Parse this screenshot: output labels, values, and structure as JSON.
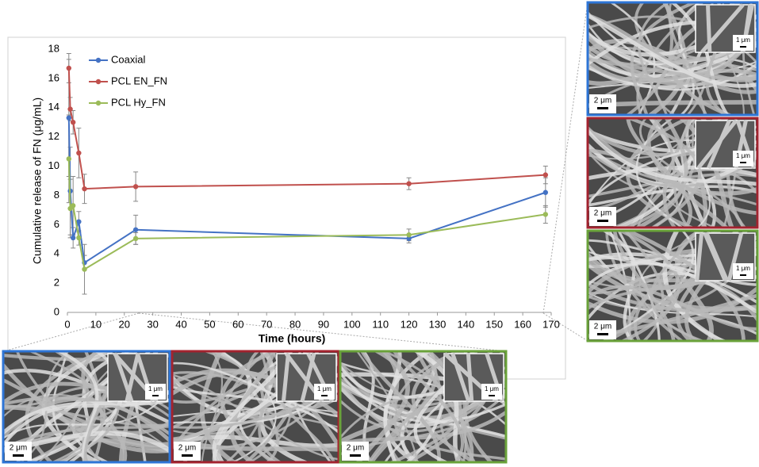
{
  "chart_data": {
    "type": "line",
    "x": [
      0.5,
      1,
      2,
      4,
      6,
      24,
      120,
      168
    ],
    "series": [
      {
        "name": "Coaxial",
        "color": "#4472c4",
        "values": [
          13.3,
          8.3,
          5.1,
          6.2,
          3.4,
          5.65,
          5.05,
          8.2
        ],
        "errors": [
          4,
          3,
          0.7,
          0.7,
          0.5,
          1.0,
          0.3,
          1.0
        ]
      },
      {
        "name": "PCL EN_FN",
        "color": "#c0504d",
        "values": [
          16.7,
          13.9,
          13.0,
          10.9,
          8.45,
          8.6,
          8.8,
          9.4
        ],
        "errors": [
          1,
          0.8,
          0.8,
          1.7,
          1,
          1,
          0.4,
          0.6
        ]
      },
      {
        "name": "PCL Hy_FN",
        "color": "#9bbb59",
        "values": [
          10.5,
          7.1,
          7.3,
          5.1,
          2.95,
          5.05,
          5.3,
          6.7
        ],
        "errors": [
          3,
          2,
          2,
          0.5,
          1.7,
          0.4,
          0.4,
          0.6
        ]
      }
    ],
    "xlabel": "Time (hours)",
    "ylabel": "Cumulative release  of FN (μg/mL)",
    "xlim": [
      0,
      170
    ],
    "xticks": [
      0,
      10,
      20,
      30,
      40,
      50,
      60,
      70,
      80,
      90,
      100,
      110,
      120,
      130,
      140,
      150,
      160,
      170
    ],
    "ylim": [
      0,
      18
    ],
    "yticks": [
      0,
      2,
      4,
      6,
      8,
      10,
      12,
      14,
      16,
      18
    ],
    "legend": "upper left",
    "grid": false
  },
  "images": [
    {
      "border": "#2e75d6",
      "scale_label": "2 μm",
      "inset_label": "1 μm"
    },
    {
      "border": "#a3232f",
      "scale_label": "2 μm",
      "inset_label": "1 μm"
    },
    {
      "border": "#6aa23a",
      "scale_label": "2 μm",
      "inset_label": "1 μm"
    },
    {
      "border": "#2e75d6",
      "scale_label": "2 μm",
      "inset_label": "1 μm"
    },
    {
      "border": "#a3232f",
      "scale_label": "2 μm",
      "inset_label": "1 μm"
    },
    {
      "border": "#6aa23a",
      "scale_label": "2 μm",
      "inset_label": "1 μm"
    }
  ]
}
